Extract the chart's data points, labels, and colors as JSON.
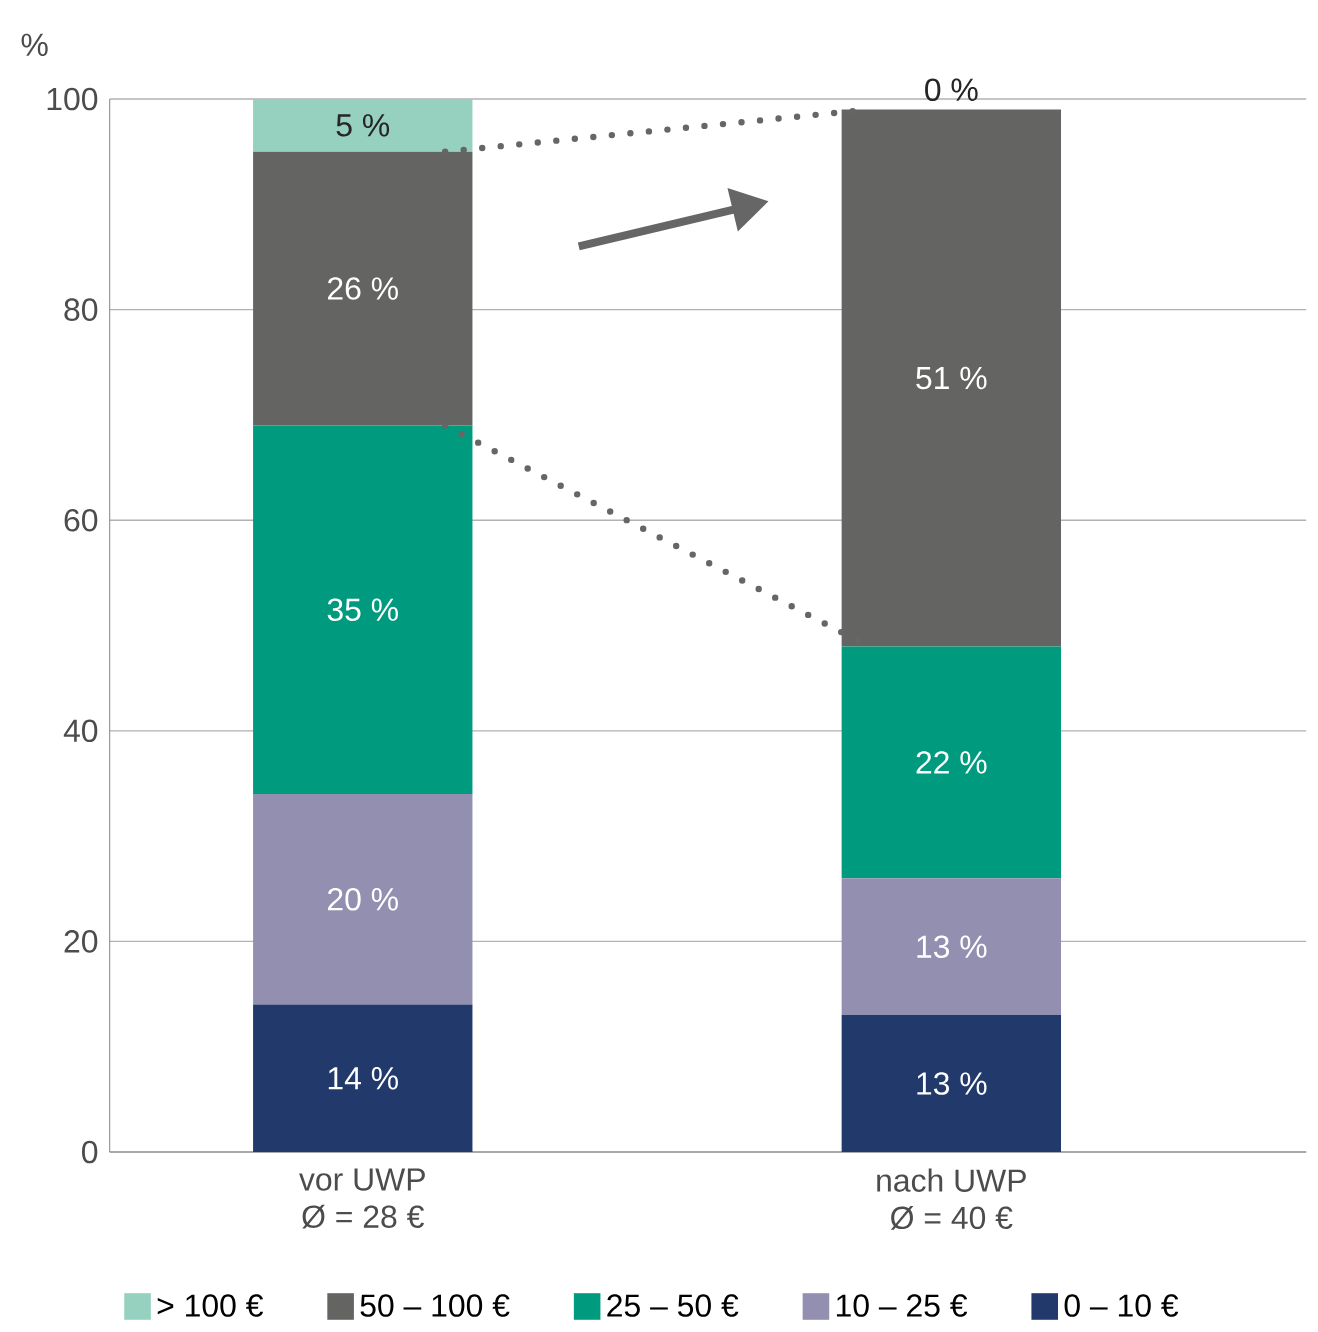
{
  "chart_data": {
    "type": "bar",
    "stacked": true,
    "ylabel": "%",
    "categories": [
      "vor UWP\nØ = 28 €",
      "nach UWP\nØ = 40 €"
    ],
    "series": [
      {
        "name": "0 – 10 €",
        "color": "#213a6b",
        "values": [
          14,
          13
        ],
        "value_labels": [
          "14 %",
          "13 %"
        ]
      },
      {
        "name": "10 – 25 €",
        "color": "#938fb0",
        "values": [
          20,
          13
        ],
        "value_labels": [
          "20 %",
          "13 %"
        ]
      },
      {
        "name": "25 – 50 €",
        "color": "#009b7f",
        "values": [
          35,
          22
        ],
        "value_labels": [
          "35 %",
          "22 %"
        ]
      },
      {
        "name": "50 – 100 €",
        "color": "#646463",
        "values": [
          26,
          51
        ],
        "value_labels": [
          "26 %",
          "51 %"
        ]
      },
      {
        "name": "> 100 €",
        "color": "#96d0be",
        "values": [
          5,
          0
        ],
        "value_labels": [
          "5 %",
          "0 %"
        ]
      }
    ],
    "ylim": [
      0,
      100
    ],
    "yticks": [
      0,
      20,
      40,
      60,
      80,
      100
    ],
    "grid": "y",
    "legend": "bottom"
  }
}
